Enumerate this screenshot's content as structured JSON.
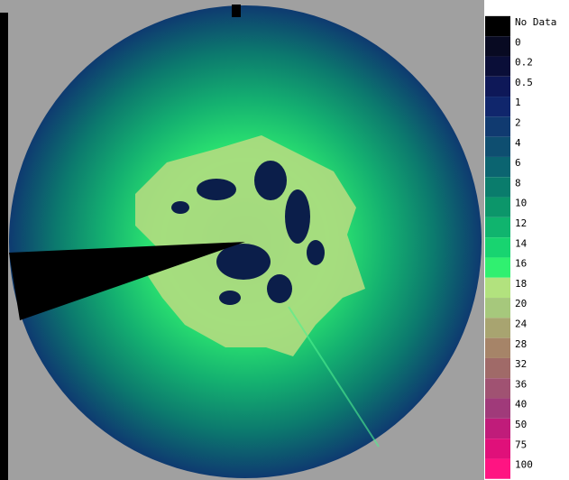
{
  "legend": {
    "items": [
      {
        "label": "No Data",
        "color": "#000000"
      },
      {
        "label": "0",
        "color": "#080a22"
      },
      {
        "label": "0.2",
        "color": "#0a0e38"
      },
      {
        "label": "0.5",
        "color": "#0e1858"
      },
      {
        "label": "1",
        "color": "#10266c"
      },
      {
        "label": "2",
        "color": "#103a70"
      },
      {
        "label": "4",
        "color": "#0e4e70"
      },
      {
        "label": "6",
        "color": "#0b6470"
      },
      {
        "label": "8",
        "color": "#0a7c6c"
      },
      {
        "label": "10",
        "color": "#0c966a"
      },
      {
        "label": "12",
        "color": "#10b46e"
      },
      {
        "label": "14",
        "color": "#18d470"
      },
      {
        "label": "16",
        "color": "#30f070"
      },
      {
        "label": "18",
        "color": "#b2e27e"
      },
      {
        "label": "20",
        "color": "#a6c87c"
      },
      {
        "label": "24",
        "color": "#a8a470"
      },
      {
        "label": "28",
        "color": "#a68468"
      },
      {
        "label": "32",
        "color": "#a06a68"
      },
      {
        "label": "36",
        "color": "#a05272"
      },
      {
        "label": "40",
        "color": "#a03a7a"
      },
      {
        "label": "50",
        "color": "#c01c7a"
      },
      {
        "label": "75",
        "color": "#e0107a"
      },
      {
        "label": "100",
        "color": "#ff1482"
      }
    ]
  }
}
